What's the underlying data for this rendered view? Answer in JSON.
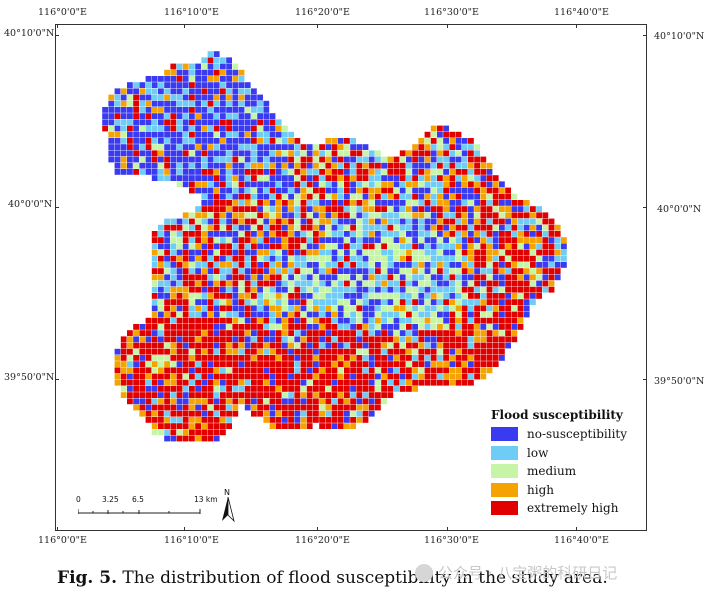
{
  "map": {
    "top_ticks": [
      "116°0'0\"E",
      "116°10'0\"E",
      "116°20'0\"E",
      "116°30'0\"E",
      "116°40'0\"E"
    ],
    "bottom_ticks": [
      "116°0'0\"E",
      "116°10'0\"E",
      "116°20'0\"E",
      "116°30'0\"E",
      "116°40'0\"E"
    ],
    "left_ticks": [
      "40°10'0\"N",
      "40°0'0\"N",
      "39°50'0\"N"
    ],
    "right_ticks": [
      "40°10'0\"N",
      "40°0'0\"N",
      "39°50'0\"N"
    ]
  },
  "legend": {
    "title": "Flood susceptibility",
    "items": [
      {
        "label": "no-susceptibility",
        "color": "#3a3af0"
      },
      {
        "label": "low",
        "color": "#6fcdf5"
      },
      {
        "label": "medium",
        "color": "#c6f5a8"
      },
      {
        "label": "high",
        "color": "#f5a300"
      },
      {
        "label": "extremely high",
        "color": "#e00000"
      }
    ]
  },
  "scalebar": {
    "labels": [
      "0",
      "3.25",
      "6.5",
      "13 km"
    ],
    "north_label": "N"
  },
  "caption": {
    "label": "Fig. 5.",
    "text": "The distribution of flood susceptibility in the study area."
  },
  "watermark": "公众号 · 八宝粥的科研日记"
}
